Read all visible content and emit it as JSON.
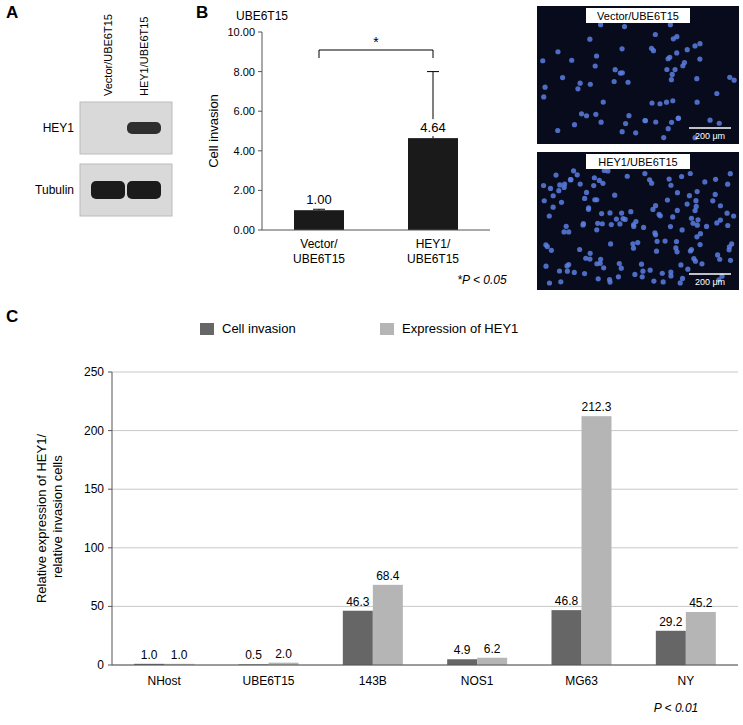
{
  "panel_labels": [
    "A",
    "B",
    "C"
  ],
  "blot": {
    "lanes": [
      "Vector/UBE6T15",
      "HEY1/UBE6T15"
    ],
    "rows": [
      {
        "label": "HEY1",
        "bands": [
          0,
          0.85
        ]
      },
      {
        "label": "Tubulin",
        "bands": [
          0.95,
          0.95
        ]
      }
    ]
  },
  "micrographs": [
    {
      "title": "Vector/UBE6T15",
      "scale_bar": "200 μm",
      "cells": 70
    },
    {
      "title": "HEY1/UBE6T15",
      "scale_bar": "200 μm",
      "cells": 160
    }
  ],
  "chart_data": [
    {
      "type": "bar",
      "title": "UBE6T15",
      "y_label": "Cell invasion",
      "categories": [
        "Vector/UBE6T15",
        "HEY1/UBE6T15"
      ],
      "values": [
        1.0,
        4.64
      ],
      "value_labels": [
        "1.00",
        "4.64"
      ],
      "errors": [
        0.05,
        3.36
      ],
      "color": "#1a1a1a",
      "ylim": [
        0,
        10
      ],
      "yticks": [
        {
          "value": 0,
          "label": "0.00"
        },
        {
          "value": 2,
          "label": "2.00"
        },
        {
          "value": 4,
          "label": "4.00"
        },
        {
          "value": 6,
          "label": "6.00"
        },
        {
          "value": 8,
          "label": "8.00"
        },
        {
          "value": 10,
          "label": "10.00"
        }
      ],
      "grid": false,
      "data_labels": true,
      "annotations": [
        "*",
        "*P < 0.05"
      ]
    },
    {
      "type": "bar",
      "y_label": "Relative expression of HEY1/ relative invasion cells",
      "categories": [
        "NHost",
        "UBE6T15",
        "143B",
        "NOS1",
        "MG63",
        "NY"
      ],
      "series": [
        {
          "name": "Cell invasion",
          "color": "#666666",
          "values": [
            1.0,
            0.5,
            46.3,
            4.9,
            46.8,
            29.2
          ],
          "value_labels": [
            "1.0",
            "0.5",
            "46.3",
            "4.9",
            "46.8",
            "29.2"
          ]
        },
        {
          "name": "Expression of HEY1",
          "color": "#b5b5b5",
          "values": [
            1.0,
            2.0,
            68.4,
            6.2,
            212.3,
            45.2
          ],
          "value_labels": [
            "1.0",
            "2.0",
            "68.4",
            "6.2",
            "212.3",
            "45.2"
          ]
        }
      ],
      "ylim": [
        0,
        250
      ],
      "yticks": [
        0,
        50,
        100,
        150,
        200,
        250
      ],
      "grid": true,
      "legend": "top",
      "data_labels": true,
      "annotations": [
        "P < 0.01"
      ]
    }
  ]
}
